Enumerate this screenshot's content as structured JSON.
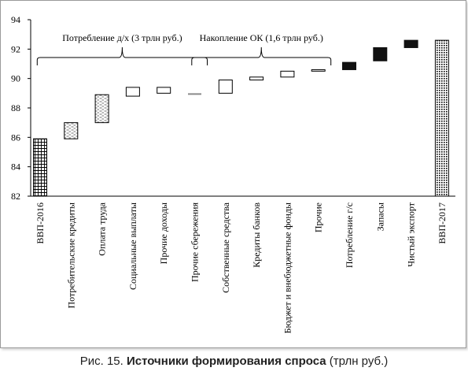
{
  "caption": {
    "prefix": "Рис. 15.",
    "title": "Источники формирования спроса",
    "unit": "(трлн руб.)"
  },
  "chart_data": {
    "type": "bar",
    "subtype": "waterfall",
    "yaxis": {
      "ylim": [
        82,
        94
      ],
      "ticks": [
        "82",
        "84",
        "86",
        "88",
        "90",
        "92",
        "94"
      ],
      "tick_values": [
        82,
        84,
        86,
        88,
        90,
        92,
        94
      ],
      "grid": false
    },
    "categories": [
      "ВВП-2016",
      "Потребительские кредиты",
      "Оплата труда",
      "Социальные выплаты",
      "Прочие доходы",
      "Прочие сбережения",
      "Собственные средства",
      "Кредиты банков",
      "Бюджет и внебюджетные фонды",
      "Прочие",
      "Потребление г/с",
      "Запасы",
      "Чистый экспорт",
      "ВВП-2017"
    ],
    "bars": [
      {
        "category": "ВВП-2016",
        "from": 82.0,
        "to": 85.9,
        "style": "grid"
      },
      {
        "category": "Потребительские кредиты",
        "from": 85.9,
        "to": 87.0,
        "style": "dash"
      },
      {
        "category": "Оплата труда",
        "from": 87.0,
        "to": 88.9,
        "style": "dash"
      },
      {
        "category": "Социальные выплаты",
        "from": 88.8,
        "to": 89.4,
        "style": "hollow"
      },
      {
        "category": "Прочие доходы",
        "from": 89.0,
        "to": 89.4,
        "style": "hollow"
      },
      {
        "category": "Прочие сбережения",
        "from": 88.9,
        "to": 89.0,
        "style": "line"
      },
      {
        "category": "Собственные средства",
        "from": 89.0,
        "to": 89.9,
        "style": "hollow"
      },
      {
        "category": "Кредиты банков",
        "from": 89.9,
        "to": 90.1,
        "style": "hollow"
      },
      {
        "category": "Бюджет и внебюджетные фонды",
        "from": 90.1,
        "to": 90.5,
        "style": "hollow"
      },
      {
        "category": "Прочие",
        "from": 90.5,
        "to": 90.6,
        "style": "hollow"
      },
      {
        "category": "Потребление г/с",
        "from": 90.6,
        "to": 91.1,
        "style": "solid"
      },
      {
        "category": "Запасы",
        "from": 91.2,
        "to": 92.1,
        "style": "solid"
      },
      {
        "category": "Чистый экспорт",
        "from": 92.1,
        "to": 92.6,
        "style": "solid"
      },
      {
        "category": "ВВП-2017",
        "from": 82.0,
        "to": 92.6,
        "style": "dots"
      }
    ],
    "annotations": [
      {
        "text": "Потребление д/х (3 трлн руб.)",
        "from_category": 1,
        "to_category": 5
      },
      {
        "text": "Накопление ОК (1,6 трлн руб.)",
        "from_category": 6,
        "to_category": 9
      }
    ],
    "colors": {
      "bar_stroke": "#000000",
      "solid_fill": "#111111",
      "line_bar": "#8a8a8a",
      "axis": "#000000"
    }
  }
}
